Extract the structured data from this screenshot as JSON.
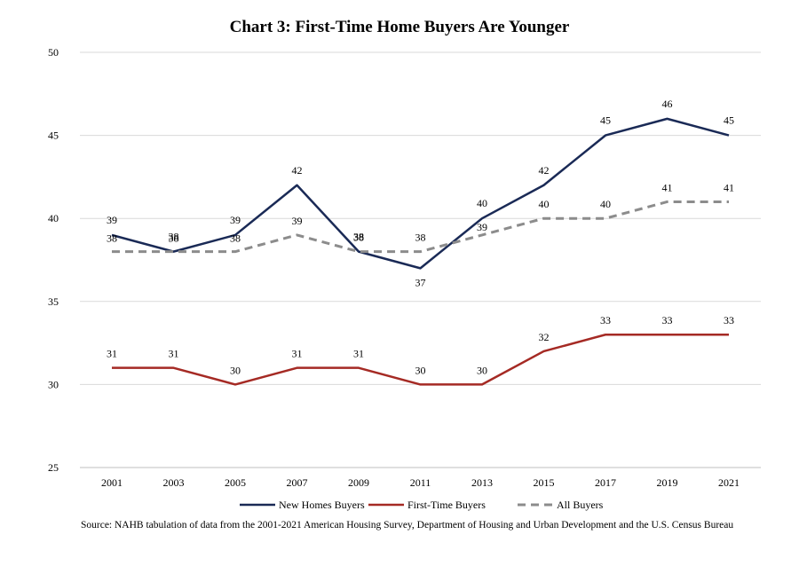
{
  "chart_data": {
    "type": "line",
    "title": "Chart 3: First-Time Home Buyers Are Younger",
    "xlabel": "",
    "ylabel": "",
    "ylim": [
      25,
      50
    ],
    "yticks": [
      "25",
      "30",
      "35",
      "40",
      "45",
      "50"
    ],
    "grid": true,
    "legend_position": "bottom",
    "categories": [
      "2001",
      "2003",
      "2005",
      "2007",
      "2009",
      "2011",
      "2013",
      "2015",
      "2017",
      "2019",
      "2021"
    ],
    "series": [
      {
        "name": "New Homes Buyers",
        "color": "#1a2a56",
        "dash": "solid",
        "label_position": "above",
        "values": [
          39,
          38,
          39,
          42,
          38,
          37,
          40,
          42,
          45,
          46,
          45
        ],
        "labels": [
          "39",
          "38",
          "39",
          "42",
          "38",
          "37",
          "40",
          "42",
          "45",
          "46",
          "45"
        ]
      },
      {
        "name": "First-Time Buyers",
        "color": "#a52a24",
        "dash": "solid",
        "label_position": "above",
        "values": [
          31,
          31,
          30,
          31,
          31,
          30,
          30,
          32,
          33,
          33,
          33
        ],
        "labels": [
          "31",
          "31",
          "30",
          "31",
          "31",
          "30",
          "30",
          "32",
          "33",
          "33",
          "33"
        ]
      },
      {
        "name": "All Buyers",
        "color": "#8c8c8c",
        "dash": "dashed",
        "label_position": "above",
        "values": [
          38,
          38,
          38,
          39,
          38,
          38,
          39,
          40,
          40,
          41,
          41
        ],
        "labels": [
          "38",
          "38",
          "38",
          "39",
          "38",
          "38",
          "39",
          "40",
          "40",
          "41",
          "41"
        ]
      }
    ],
    "source": "Source: NAHB tabulation of data from the 2001-2021 American Housing Survey, Department of Housing and Urban Development and the U.S. Census Bureau"
  }
}
